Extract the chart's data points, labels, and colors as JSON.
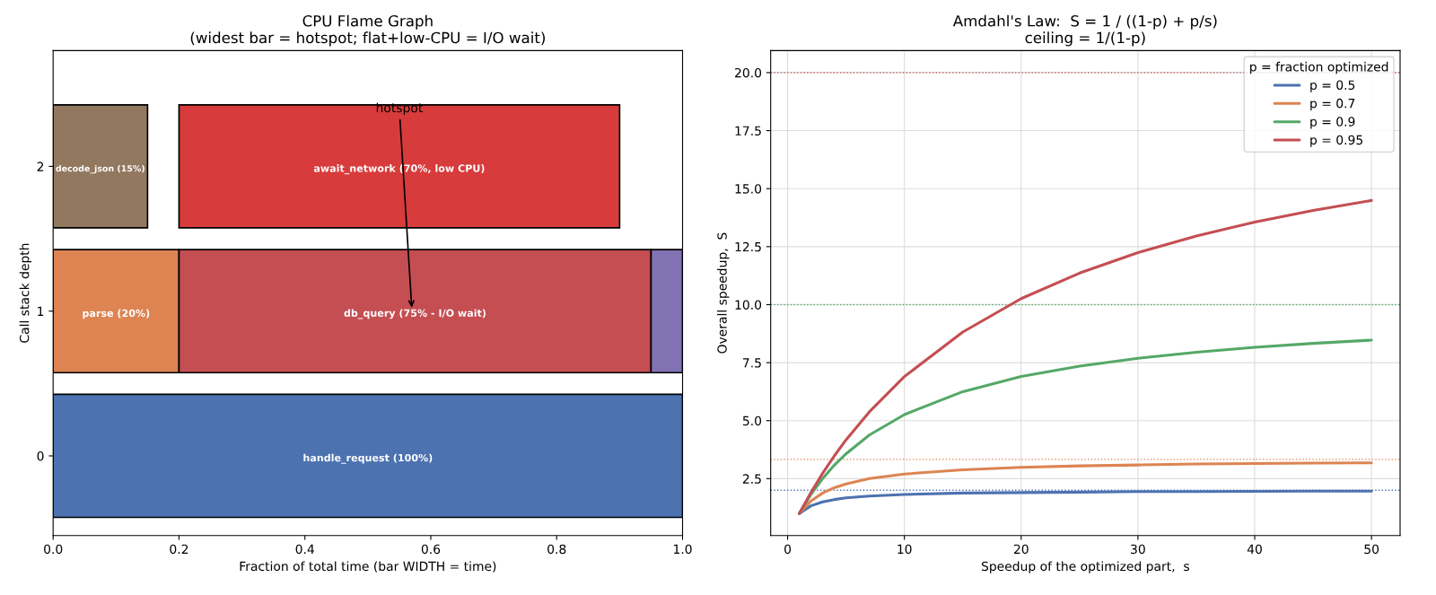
{
  "chart_data": [
    {
      "type": "bar",
      "orientation": "horizontal",
      "title": "CPU Flame Graph\n(widest bar = hotspot; flat+low-CPU = I/O wait)",
      "xlabel": "Fraction of total time (bar WIDTH = time)",
      "ylabel": "Call stack depth",
      "categories": [
        "2",
        "1",
        "0"
      ],
      "series": [
        {
          "name": "handle_request (100%)",
          "color": "#4c72b0",
          "values": [
            null,
            null,
            1.0
          ],
          "base": [
            null,
            null,
            0
          ]
        },
        {
          "name": "parse (20%)",
          "color": "#dd8452",
          "values": [
            null,
            0.2,
            null
          ],
          "base": [
            null,
            0,
            null
          ]
        },
        {
          "name": "db_query (75% - I/O wait)",
          "color": "#c44e52",
          "values": [
            null,
            0.75,
            null
          ],
          "base": [
            null,
            0.2,
            null
          ]
        },
        {
          "color": "#8172b3",
          "values": [
            null,
            0.05,
            null
          ],
          "base": [
            null,
            0.95,
            null
          ]
        },
        {
          "name": "decode_json (15%)",
          "color": "#937860",
          "values": [
            0.15,
            null,
            null
          ],
          "base": [
            0,
            null,
            null
          ]
        },
        {
          "name": "await_network (70%, low CPU)",
          "color": "#d83b3b",
          "values": [
            0.7,
            null,
            null
          ],
          "base": [
            0.2,
            null,
            null
          ]
        }
      ],
      "xlim": [
        0,
        1.0
      ],
      "xticks": [
        {
          "value": 0,
          "label": "0.0"
        },
        0.2,
        0.4,
        0.6,
        0.8,
        {
          "value": 1.0,
          "label": "1.0"
        }
      ],
      "annotations": [
        "hotspot"
      ]
    },
    {
      "type": "line",
      "title": "Amdahl's Law:  S = 1 / ((1-p) + p/s)\nceiling = 1/(1-p)",
      "xlabel": "Speedup of the optimized part,  s",
      "ylabel": "Overall speedup,  S",
      "legend_title": "p = fraction optimized",
      "x": [
        1,
        2,
        3,
        4,
        5,
        7,
        10,
        15,
        20,
        25,
        30,
        35,
        40,
        45,
        50
      ],
      "series": [
        {
          "name": "p = 0.5",
          "color": "#4c72b0",
          "values": [
            1,
            1.33,
            1.5,
            1.6,
            1.67,
            1.75,
            1.82,
            1.88,
            1.9,
            1.92,
            1.94,
            1.94,
            1.95,
            1.96,
            1.96
          ]
        },
        {
          "name": "p = 0.7",
          "color": "#dd8452",
          "values": [
            1,
            1.54,
            1.88,
            2.11,
            2.27,
            2.5,
            2.7,
            2.88,
            2.99,
            3.05,
            3.09,
            3.13,
            3.15,
            3.17,
            3.18
          ]
        },
        {
          "name": "p = 0.9",
          "color": "#55a868",
          "values": [
            1,
            1.82,
            2.5,
            3.08,
            3.57,
            4.38,
            5.26,
            6.25,
            6.9,
            7.35,
            7.69,
            7.95,
            8.16,
            8.33,
            8.47
          ]
        },
        {
          "name": "p = 0.95",
          "color": "#c44e52",
          "values": [
            1,
            1.9,
            2.73,
            3.48,
            4.17,
            5.38,
            6.9,
            8.82,
            10.26,
            11.36,
            12.24,
            12.96,
            13.56,
            14.06,
            14.49
          ]
        }
      ],
      "ref_lines": [
        {
          "axis": "y",
          "value": 2,
          "color": "#4c72b0",
          "line_style": "dotted"
        },
        {
          "axis": "y",
          "value": 3.333,
          "color": "#dd8452",
          "line_style": "dotted"
        },
        {
          "axis": "y",
          "value": 10,
          "color": "#55a868",
          "line_style": "dotted"
        },
        {
          "axis": "y",
          "value": 20,
          "color": "#c44e52",
          "line_style": "dotted"
        }
      ],
      "xlim": [
        -1.45,
        52.45
      ],
      "xticks": [
        0,
        10,
        20,
        30,
        40,
        50
      ],
      "ylim": [
        0.05,
        20.95
      ],
      "yticks": [
        {
          "value": 2.5,
          "label": "2.5"
        },
        {
          "value": 5,
          "label": "5.0"
        },
        {
          "value": 7.5,
          "label": "7.5"
        },
        {
          "value": 10,
          "label": "10.0"
        },
        {
          "value": 12.5,
          "label": "12.5"
        },
        {
          "value": 15,
          "label": "15.0"
        },
        {
          "value": 17.5,
          "label": "17.5"
        },
        {
          "value": 20,
          "label": "20.0"
        }
      ],
      "grid": true,
      "legend": "top right",
      "line_style": "solid",
      "marker": "none"
    }
  ]
}
